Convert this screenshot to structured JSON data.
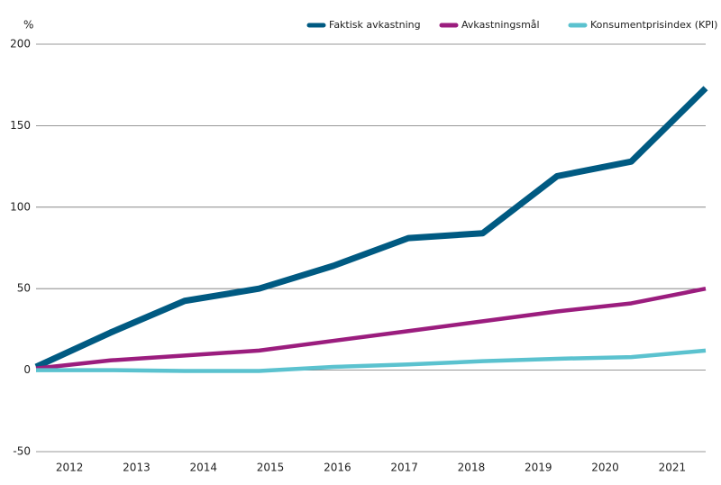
{
  "chart_data": {
    "type": "line",
    "y_unit_label": "%",
    "x": [
      2012,
      2013.11,
      2014.22,
      2015.33,
      2016.44,
      2017.56,
      2018.67,
      2019.78,
      2020.89,
      2022
    ],
    "series": [
      {
        "name": "Faktisk avkastning",
        "color": "#005a82",
        "values": [
          2,
          23,
          42.5,
          50,
          64,
          81,
          84,
          119,
          128,
          173
        ]
      },
      {
        "name": "Avkastningsmål",
        "color": "#9b1d7e",
        "values": [
          1,
          6,
          9,
          12,
          18,
          24,
          30,
          36,
          41,
          50
        ]
      },
      {
        "name": "Konsumentprisindex (KPI)",
        "color": "#5bc2cf",
        "values": [
          0,
          0,
          -0.5,
          -0.5,
          2,
          3.5,
          5.5,
          7,
          8,
          12
        ]
      }
    ],
    "xlim": [
      2012,
      2022
    ],
    "xticks": [
      {
        "value": 2012.5,
        "label": "2012"
      },
      {
        "value": 2013.5,
        "label": "2013"
      },
      {
        "value": 2014.5,
        "label": "2014"
      },
      {
        "value": 2015.5,
        "label": "2015"
      },
      {
        "value": 2016.5,
        "label": "2016"
      },
      {
        "value": 2017.5,
        "label": "2017"
      },
      {
        "value": 2018.5,
        "label": "2018"
      },
      {
        "value": 2019.5,
        "label": "2019"
      },
      {
        "value": 2020.5,
        "label": "2020"
      },
      {
        "value": 2021.5,
        "label": "2021"
      }
    ],
    "ylim": [
      -50,
      200
    ],
    "yticks": [
      -50,
      0,
      50,
      100,
      150,
      200
    ],
    "grid": true,
    "legend": "top-right"
  }
}
